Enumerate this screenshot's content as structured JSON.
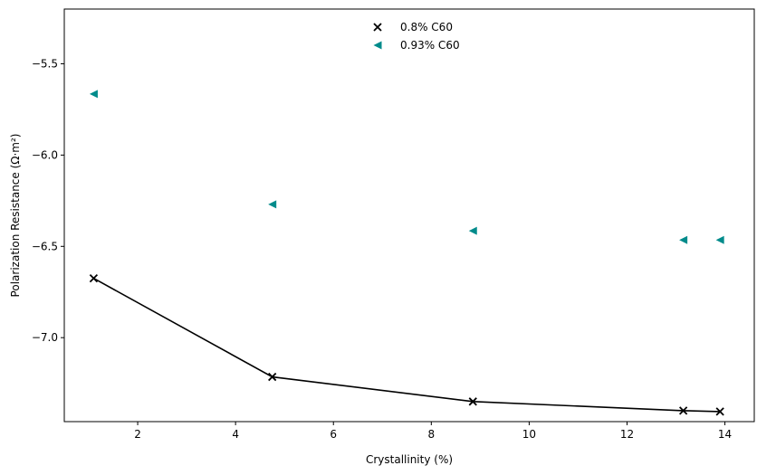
{
  "chart_data": {
    "type": "scatter",
    "xlabel": "Crystallinity (%)",
    "ylabel": "Polarization Resistance (Ω·m²)",
    "xlim": [
      0.5,
      14.6
    ],
    "ylim": [
      -7.46,
      -5.2
    ],
    "xticks": [
      2,
      4,
      6,
      8,
      10,
      12,
      14
    ],
    "yticks": [
      -7.0,
      -6.5,
      -6.0,
      -5.5
    ],
    "xtick_labels": [
      "2",
      "4",
      "6",
      "8",
      "10",
      "12",
      "14"
    ],
    "ytick_labels": [
      "−7.0",
      "−6.5",
      "−6.0",
      "−5.5"
    ],
    "grid": false,
    "legend_position": "top-center",
    "series": [
      {
        "name": "0.8% C60",
        "marker": "x",
        "color": "#000000",
        "line": true,
        "x": [
          1.1,
          4.75,
          8.85,
          13.15,
          13.9
        ],
        "y": [
          -6.675,
          -7.215,
          -7.35,
          -7.4,
          -7.405
        ]
      },
      {
        "name": "0.93% C60",
        "marker": "triangle-left",
        "color": "#008b8b",
        "line": false,
        "x": [
          1.1,
          4.75,
          8.85,
          13.15,
          13.9
        ],
        "y": [
          -5.665,
          -6.27,
          -6.415,
          -6.465,
          -6.465
        ]
      }
    ]
  }
}
